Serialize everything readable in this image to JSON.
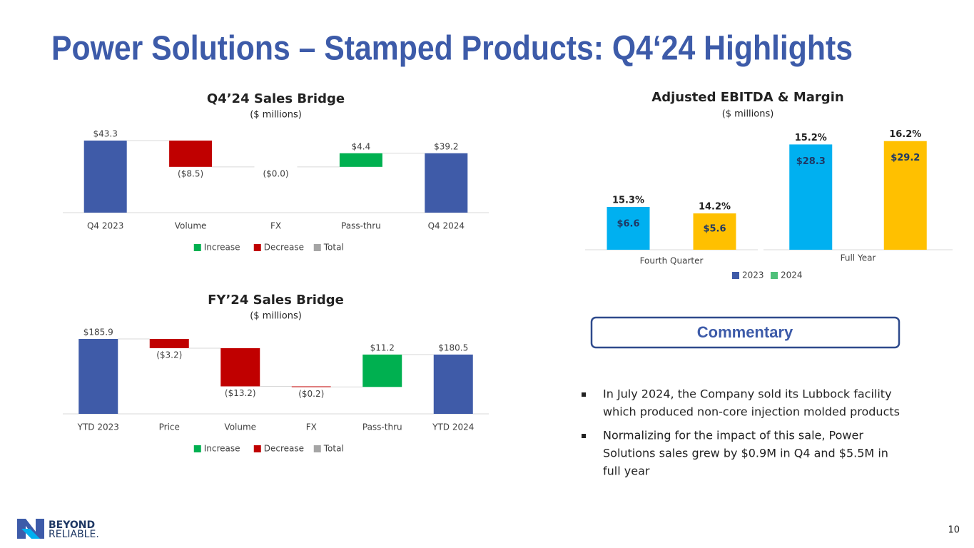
{
  "title": "Power Solutions – Stamped Products: Q4‘24 Highlights",
  "chart_data": [
    {
      "type": "waterfall",
      "title": "Q4’24 Sales Bridge",
      "subtitle": "($ millions)",
      "categories": [
        "Q4 2023",
        "Volume",
        "FX",
        "Pass-thru",
        "Q4 2024"
      ],
      "measures": [
        "total",
        "relative",
        "relative",
        "relative",
        "total"
      ],
      "values": [
        43.3,
        -8.5,
        -0.0,
        4.4,
        39.2
      ],
      "value_labels": [
        "$43.3",
        "($8.5)",
        "($0.0)",
        "$4.4",
        "$39.2"
      ],
      "ylim": [
        20,
        45
      ],
      "total_color": "#3f5ba8",
      "legend": [
        {
          "name": "Increase",
          "color": "#00b050"
        },
        {
          "name": "Decrease",
          "color": "#c00000"
        },
        {
          "name": "Total",
          "color": "#a5a5a5"
        }
      ]
    },
    {
      "type": "waterfall",
      "title": "FY’24 Sales Bridge",
      "subtitle": "($ millions)",
      "categories": [
        "YTD 2023",
        "Price",
        "Volume",
        "FX",
        "Pass-thru",
        "YTD 2024"
      ],
      "measures": [
        "total",
        "relative",
        "relative",
        "relative",
        "relative",
        "total"
      ],
      "values": [
        185.9,
        -3.2,
        -13.2,
        -0.2,
        11.2,
        180.5
      ],
      "value_labels": [
        "$185.9",
        "($3.2)",
        "($13.2)",
        "($0.2)",
        "$11.2",
        "$180.5"
      ],
      "ylim": [
        160,
        190
      ],
      "total_color": "#3f5ba8",
      "legend": [
        {
          "name": "Increase",
          "color": "#00b050"
        },
        {
          "name": "Decrease",
          "color": "#c00000"
        },
        {
          "name": "Total",
          "color": "#a5a5a5"
        }
      ]
    },
    {
      "type": "bar",
      "title": "Adjusted EBITDA & Margin",
      "subtitle": "($ millions)",
      "categories": [
        "Fourth Quarter",
        "Full Year"
      ],
      "ylim_by_category": [
        [
          0,
          18.7
        ],
        [
          0,
          32.6
        ]
      ],
      "series": [
        {
          "name": "2023",
          "color": "#00b0f0",
          "legend_color": "#3f5ba8",
          "values": [
            6.6,
            28.3
          ],
          "value_labels": [
            "$6.6",
            "$28.3"
          ],
          "margins": [
            15.3,
            15.2
          ],
          "margin_labels": [
            "15.3%",
            "15.2%"
          ]
        },
        {
          "name": "2024",
          "color": "#ffc000",
          "legend_color": "#4fc07a",
          "values": [
            5.6,
            29.2
          ],
          "value_labels": [
            "$5.6",
            "$29.2"
          ],
          "margins": [
            14.2,
            16.2
          ],
          "margin_labels": [
            "14.2%",
            "16.2%"
          ]
        }
      ]
    }
  ],
  "commentary": {
    "heading": "Commentary",
    "bullets": [
      [
        "In July 2024, the Company sold its Lubbock facility",
        "which produced non-core injection molded products"
      ],
      [
        "Normalizing for the impact of this sale, Power",
        "Solutions sales grew by $0.9M in Q4 and $5.5M in",
        "full year"
      ]
    ]
  },
  "logo": [
    "BEYOND",
    "RELIABLE."
  ],
  "page_number": "10"
}
